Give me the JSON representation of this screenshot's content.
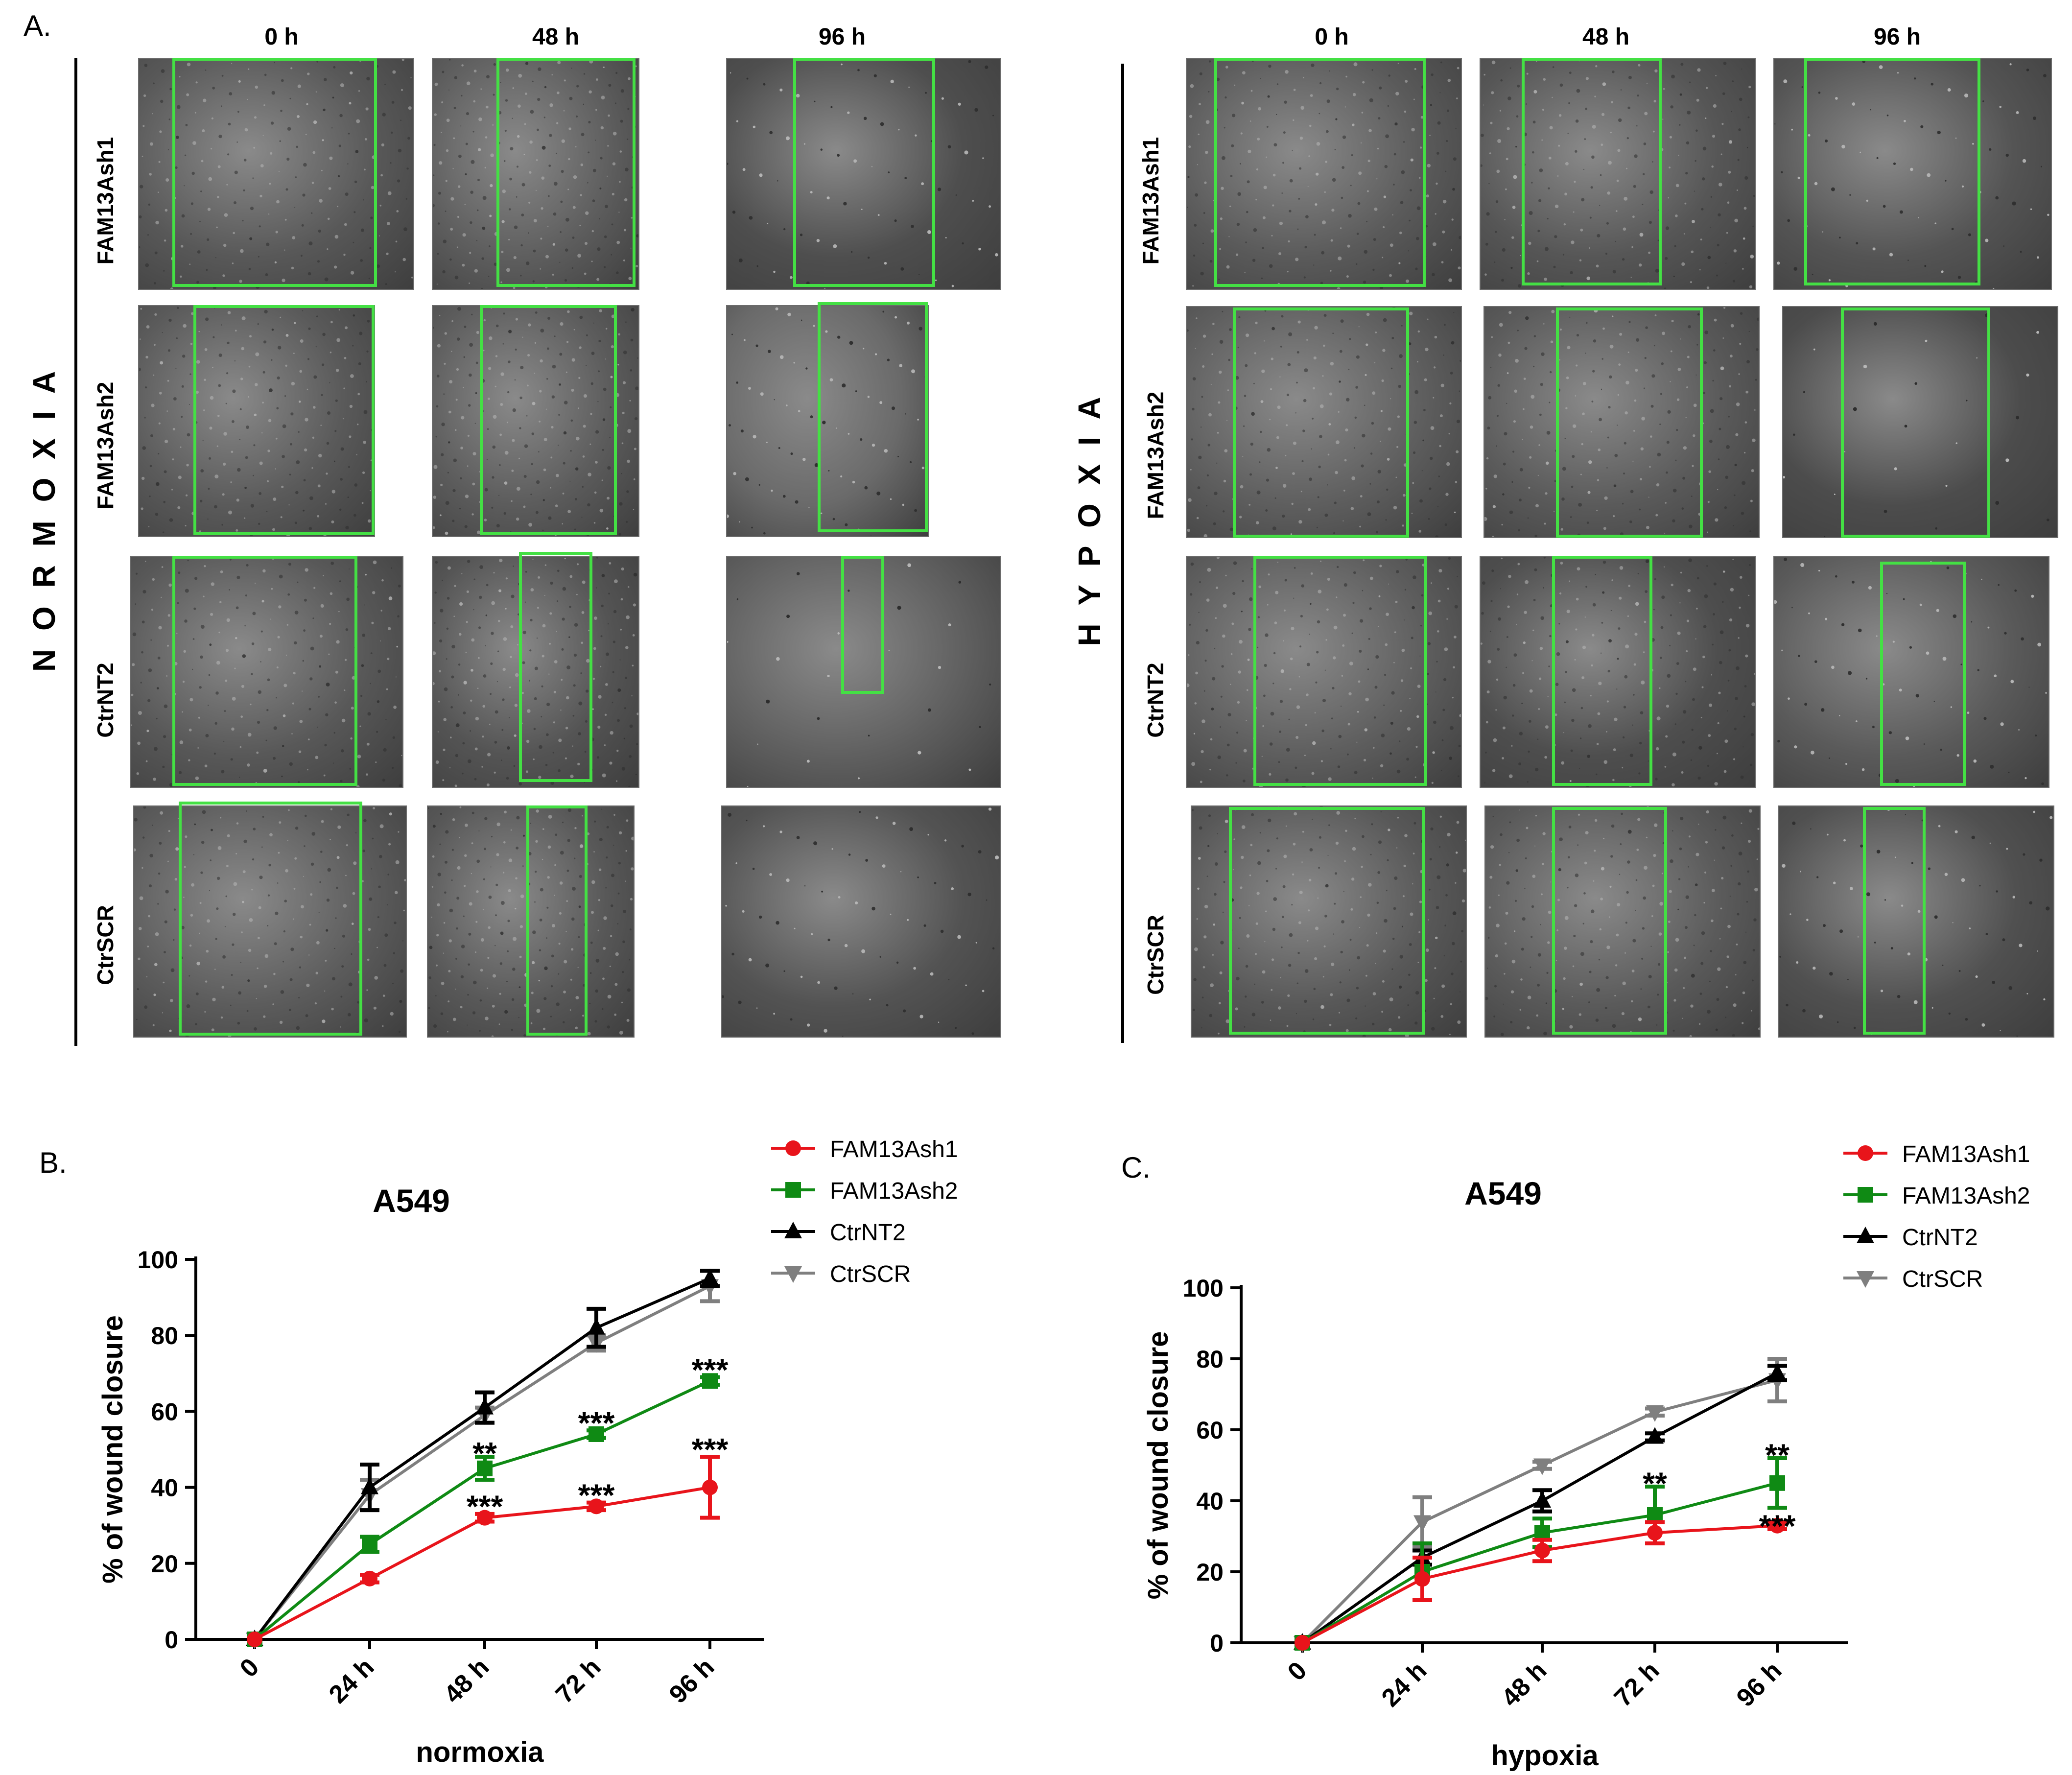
{
  "panel_labels": {
    "a": "A.",
    "b": "B.",
    "c": "C."
  },
  "micrographs": {
    "column_headers": [
      "0 h",
      "48 h",
      "96 h"
    ],
    "row_labels": [
      "FAM13Ash1",
      "FAM13Ash2",
      "CtrNT2",
      "CtrSCR"
    ],
    "conditions": [
      {
        "label": "N O R M O X I A"
      },
      {
        "label": "H Y P O X I A"
      }
    ]
  },
  "colors": {
    "FAM13Ash1": "#e8141b",
    "FAM13Ash2": "#0f8a14",
    "CtrNT2": "#000000",
    "CtrSCR": "#7f7f7f",
    "gap_box": "#44e044"
  },
  "chart_data": [
    {
      "type": "line",
      "title": "A549",
      "xlabel": "normoxia",
      "ylabel": "% of wound closure",
      "categories": [
        "0",
        "24 h",
        "48 h",
        "72 h",
        "96 h"
      ],
      "ylim": [
        0,
        100
      ],
      "yticks": [
        "0",
        "20",
        "40",
        "60",
        "80",
        "100"
      ],
      "legend_position": "top-right",
      "series": [
        {
          "name": "FAM13Ash1",
          "marker": "circle",
          "values": [
            0,
            16,
            32,
            35,
            40
          ],
          "errors": [
            0,
            1,
            1,
            1,
            8
          ]
        },
        {
          "name": "FAM13Ash2",
          "marker": "square",
          "values": [
            0,
            25,
            45,
            54,
            68
          ],
          "errors": [
            0,
            2,
            3,
            1,
            1
          ]
        },
        {
          "name": "CtrNT2",
          "marker": "triangle-up",
          "values": [
            0,
            40,
            61,
            82,
            95
          ],
          "errors": [
            0,
            6,
            4,
            5,
            2
          ]
        },
        {
          "name": "CtrSCR",
          "marker": "triangle-down",
          "values": [
            0,
            38,
            59,
            78,
            93
          ],
          "errors": [
            0,
            4,
            2,
            2,
            4
          ]
        }
      ],
      "legend_labels": [
        "FAM13Ash1",
        "FAM13Ash2",
        "CtrNT2",
        " CtrSCR"
      ],
      "annotations": [
        {
          "text": "**",
          "category": "48 h",
          "y": 50
        },
        {
          "text": "***",
          "category": "48 h",
          "y": 36
        },
        {
          "text": "***",
          "category": "72 h",
          "y": 58
        },
        {
          "text": "***",
          "category": "72 h",
          "y": 39
        },
        {
          "text": "***",
          "category": "96 h",
          "y": 72
        },
        {
          "text": "***",
          "category": "96 h",
          "y": 51
        }
      ]
    },
    {
      "type": "line",
      "title": "A549",
      "xlabel": "hypoxia",
      "ylabel": "% of wound closure",
      "categories": [
        "0",
        "24 h",
        "48 h",
        "72 h",
        "96 h"
      ],
      "ylim": [
        0,
        100
      ],
      "yticks": [
        "0",
        "20",
        "40",
        "60",
        "80",
        "100"
      ],
      "legend_position": "top-right",
      "series": [
        {
          "name": "FAM13Ash1",
          "marker": "circle",
          "values": [
            0,
            18,
            26,
            31,
            33
          ],
          "errors": [
            0,
            6,
            3,
            3,
            1
          ]
        },
        {
          "name": "FAM13Ash2",
          "marker": "square",
          "values": [
            0,
            20,
            31,
            36,
            45
          ],
          "errors": [
            0,
            8,
            4,
            8,
            7
          ]
        },
        {
          "name": "CtrNT2",
          "marker": "triangle-up",
          "values": [
            0,
            24,
            40,
            58,
            76
          ],
          "errors": [
            0,
            2,
            3,
            1,
            2
          ]
        },
        {
          "name": "CtrSCR",
          "marker": "triangle-down",
          "values": [
            0,
            34,
            50,
            65,
            74
          ],
          "errors": [
            0,
            7,
            1,
            1,
            6
          ]
        }
      ],
      "legend_labels": [
        "FAM13Ash1",
        "FAM13Ash2",
        "CtrNT2",
        " CtrSCR"
      ],
      "annotations": [
        {
          "text": "**",
          "category": "72 h",
          "y": 46
        },
        {
          "text": "**",
          "category": "96 h",
          "y": 54
        },
        {
          "text": "***",
          "category": "96 h",
          "y": 34
        }
      ]
    }
  ]
}
